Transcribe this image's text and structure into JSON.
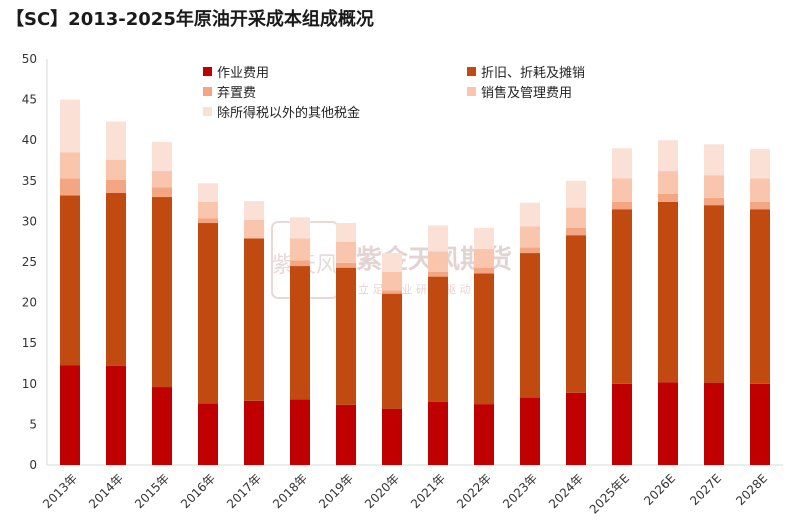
{
  "title": "【SC】2013-2025年原油开采成本组成概况",
  "watermark": {
    "name": "紫金天风期货",
    "slogan": "立 足 产 业  研 究 驱 动",
    "logo_text": "紫天风",
    "color": "#c9a7a7"
  },
  "chart_data": {
    "type": "bar",
    "stacked": true,
    "title": "【SC】2013-2025年原油开采成本组成概况",
    "xlabel": "",
    "ylabel": "",
    "ylim": [
      0,
      50
    ],
    "yticks": [
      0,
      5,
      10,
      15,
      20,
      25,
      30,
      35,
      40,
      45,
      50
    ],
    "categories": [
      "2013年",
      "2014年",
      "2015年",
      "2016年",
      "2017年",
      "2018年",
      "2019年",
      "2020年",
      "2021年",
      "2022年",
      "2023年",
      "2024年",
      "2025年E",
      "2026E",
      "2027E",
      "2028E"
    ],
    "series": [
      {
        "name": "作业费用",
        "color": "#c00000",
        "values": [
          12.3,
          12.2,
          9.6,
          7.6,
          7.9,
          8.1,
          7.4,
          6.9,
          7.8,
          7.5,
          8.3,
          8.9,
          10.0,
          10.2,
          10.1,
          10.0
        ]
      },
      {
        "name": "折旧、折耗及摊销",
        "color": "#c04a10",
        "values": [
          20.9,
          21.3,
          23.4,
          22.2,
          20.0,
          16.4,
          16.9,
          14.2,
          15.4,
          16.1,
          17.8,
          19.4,
          21.5,
          22.2,
          21.9,
          21.5
        ]
      },
      {
        "name": "弃置费",
        "color": "#f4a582",
        "values": [
          2.1,
          1.6,
          1.2,
          0.6,
          0.0,
          0.7,
          0.6,
          0.4,
          0.6,
          0.7,
          0.7,
          0.9,
          0.9,
          1.0,
          0.9,
          0.9
        ]
      },
      {
        "name": "销售及管理费用",
        "color": "#f9c6ad",
        "values": [
          3.2,
          2.5,
          2.0,
          2.0,
          2.3,
          2.7,
          2.6,
          2.3,
          2.5,
          2.3,
          2.6,
          2.5,
          2.9,
          2.8,
          2.8,
          2.9
        ]
      },
      {
        "name": "除所得税以外的其他税金",
        "color": "#fbe0d5",
        "values": [
          6.5,
          4.7,
          3.6,
          2.3,
          2.3,
          2.6,
          2.3,
          2.3,
          3.2,
          2.6,
          2.9,
          3.3,
          3.7,
          3.8,
          3.8,
          3.6
        ]
      }
    ],
    "legend": "top, two columns",
    "grid": false
  }
}
